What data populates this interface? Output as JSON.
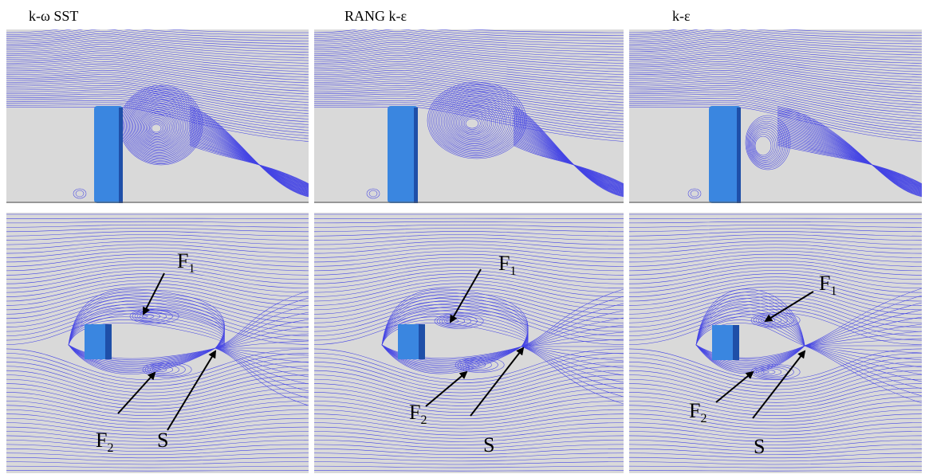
{
  "columns": [
    {
      "title": "k-ω SST",
      "labels": {
        "f1": "F",
        "f1_sub": "1",
        "f2": "F",
        "f2_sub": "2",
        "s": "S"
      }
    },
    {
      "title": "RANG k-ε",
      "labels": {
        "f1": "F",
        "f1_sub": "1",
        "f2": "F",
        "f2_sub": "2",
        "s": "S"
      }
    },
    {
      "title": "k-ε",
      "labels": {
        "f1": "F",
        "f1_sub": "1",
        "f2": "F",
        "f2_sub": "2",
        "s": "S"
      }
    }
  ],
  "colors": {
    "background": "#d9d9d9",
    "streamline": "#2a2ae6",
    "block_face": "#3a86e0",
    "block_dark": "#1f4fa8"
  }
}
